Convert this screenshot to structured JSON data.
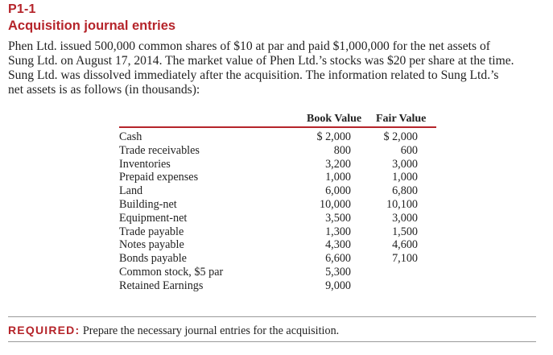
{
  "header": {
    "problem_number": "P1-1",
    "title": "Acquisition journal entries"
  },
  "intro": {
    "lines": [
      "Phen Ltd. issued 500,000 common shares of $10 at par and paid $1,000,000 for the net assets of",
      "Sung Ltd. on August 17, 2014. The market value of Phen Ltd.’s stocks was $20 per share at the time.",
      "Sung Ltd. was dissolved immediately after the acquisition. The information related to Sung Ltd.’s",
      "net assets is as follows (in thousands):"
    ]
  },
  "table": {
    "headers": {
      "book": "Book Value",
      "fair": "Fair Value"
    },
    "rows": [
      {
        "label": "Cash",
        "book": "$ 2,000",
        "fair": "$ 2,000"
      },
      {
        "label": "Trade receivables",
        "book": "800",
        "fair": "600"
      },
      {
        "label": "Inventories",
        "book": "3,200",
        "fair": "3,000"
      },
      {
        "label": "Prepaid expenses",
        "book": "1,000",
        "fair": "1,000"
      },
      {
        "label": "Land",
        "book": "6,000",
        "fair": "6,800"
      },
      {
        "label": "Building-net",
        "book": "10,000",
        "fair": "10,100"
      },
      {
        "label": "Equipment-net",
        "book": "3,500",
        "fair": "3,000"
      },
      {
        "label": "Trade payable",
        "book": "1,300",
        "fair": "1,500"
      },
      {
        "label": "Notes payable",
        "book": "4,300",
        "fair": "4,600"
      },
      {
        "label": "Bonds payable",
        "book": "6,600",
        "fair": "7,100"
      },
      {
        "label": "Common stock, $5 par",
        "book": "5,300",
        "fair": ""
      },
      {
        "label": "Retained Earnings",
        "book": "9,000",
        "fair": ""
      }
    ]
  },
  "required": {
    "label": "REQUIRED:",
    "text": "Prepare the necessary journal entries for the acquisition."
  }
}
